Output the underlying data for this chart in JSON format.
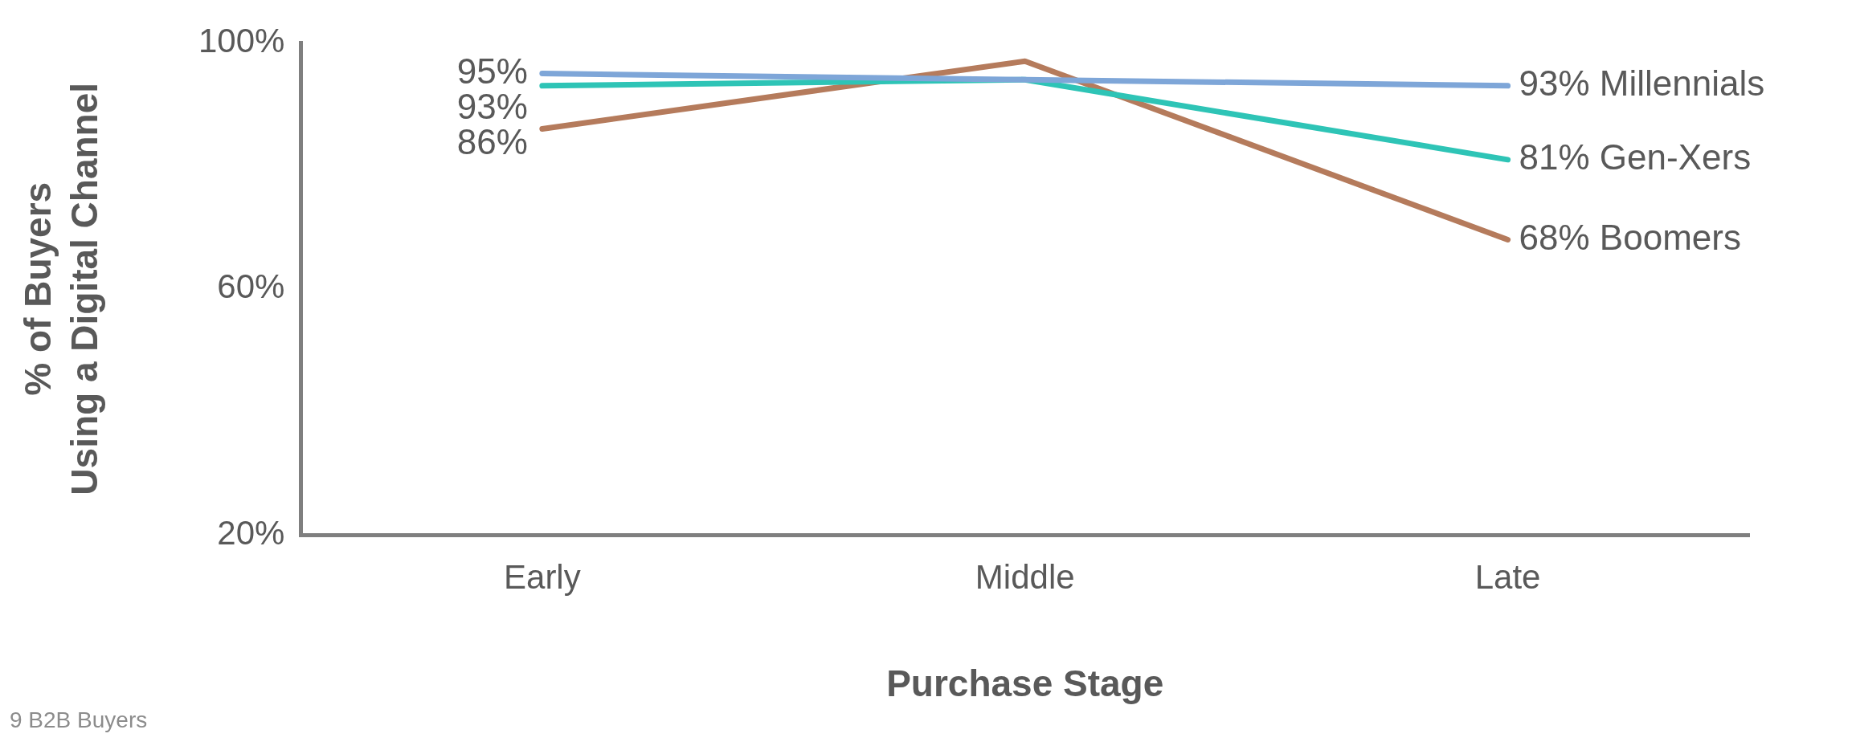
{
  "chart_data": {
    "type": "line",
    "ylabel": "% of Buyers\nUsing a Digital Channel",
    "xlabel": "Purchase Stage",
    "categories": [
      "Early",
      "Middle",
      "Late"
    ],
    "series": [
      {
        "name": "Millennials",
        "color": "#7ea6d8",
        "values": [
          95,
          94,
          93
        ],
        "value_labels": [
          "95%",
          null,
          "93%"
        ]
      },
      {
        "name": "Gen-Xers",
        "color": "#2ec4b6",
        "values": [
          93,
          94,
          81
        ],
        "value_labels": [
          "93%",
          null,
          "81%"
        ]
      },
      {
        "name": "Boomers",
        "color": "#b57b5c",
        "values": [
          86,
          97,
          68
        ],
        "value_labels": [
          "86%",
          null,
          "68%"
        ]
      }
    ],
    "ylim": [
      20,
      100
    ],
    "yticks": [
      {
        "value": 20,
        "label": "20%"
      },
      {
        "value": 60,
        "label": "60%"
      },
      {
        "value": 100,
        "label": "100%"
      }
    ],
    "grid": false,
    "legend": false,
    "marker": "none",
    "line_style": "solid",
    "annotations": [
      "9 B2B Buyers"
    ]
  }
}
